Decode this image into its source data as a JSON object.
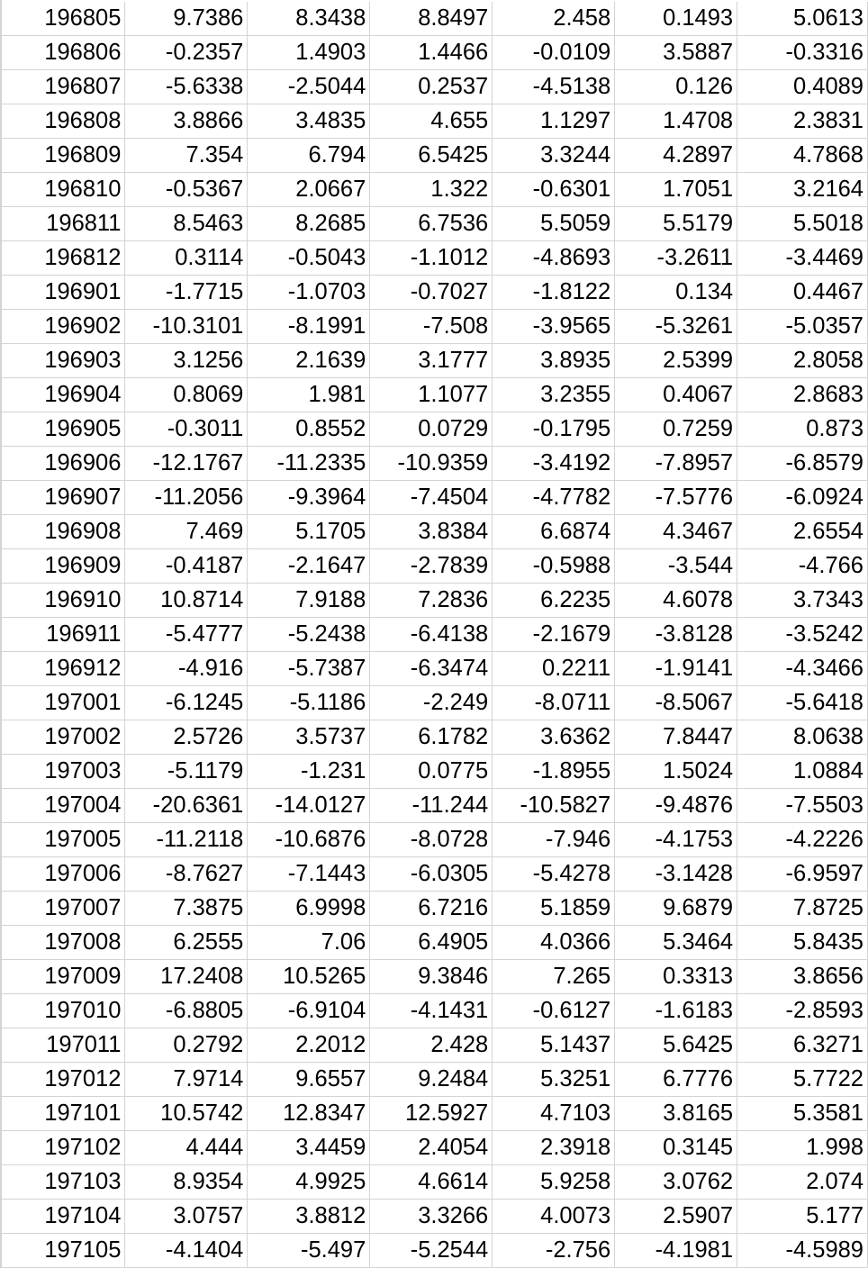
{
  "spreadsheet": {
    "rows": [
      [
        "196805",
        "9.7386",
        "8.3438",
        "8.8497",
        "2.458",
        "0.1493",
        "5.0613"
      ],
      [
        "196806",
        "-0.2357",
        "1.4903",
        "1.4466",
        "-0.0109",
        "3.5887",
        "-0.3316"
      ],
      [
        "196807",
        "-5.6338",
        "-2.5044",
        "0.2537",
        "-4.5138",
        "0.126",
        "0.4089"
      ],
      [
        "196808",
        "3.8866",
        "3.4835",
        "4.655",
        "1.1297",
        "1.4708",
        "2.3831"
      ],
      [
        "196809",
        "7.354",
        "6.794",
        "6.5425",
        "3.3244",
        "4.2897",
        "4.7868"
      ],
      [
        "196810",
        "-0.5367",
        "2.0667",
        "1.322",
        "-0.6301",
        "1.7051",
        "3.2164"
      ],
      [
        "196811",
        "8.5463",
        "8.2685",
        "6.7536",
        "5.5059",
        "5.5179",
        "5.5018"
      ],
      [
        "196812",
        "0.3114",
        "-0.5043",
        "-1.1012",
        "-4.8693",
        "-3.2611",
        "-3.4469"
      ],
      [
        "196901",
        "-1.7715",
        "-1.0703",
        "-0.7027",
        "-1.8122",
        "0.134",
        "0.4467"
      ],
      [
        "196902",
        "-10.3101",
        "-8.1991",
        "-7.508",
        "-3.9565",
        "-5.3261",
        "-5.0357"
      ],
      [
        "196903",
        "3.1256",
        "2.1639",
        "3.1777",
        "3.8935",
        "2.5399",
        "2.8058"
      ],
      [
        "196904",
        "0.8069",
        "1.981",
        "1.1077",
        "3.2355",
        "0.4067",
        "2.8683"
      ],
      [
        "196905",
        "-0.3011",
        "0.8552",
        "0.0729",
        "-0.1795",
        "0.7259",
        "0.873"
      ],
      [
        "196906",
        "-12.1767",
        "-11.2335",
        "-10.9359",
        "-3.4192",
        "-7.8957",
        "-6.8579"
      ],
      [
        "196907",
        "-11.2056",
        "-9.3964",
        "-7.4504",
        "-4.7782",
        "-7.5776",
        "-6.0924"
      ],
      [
        "196908",
        "7.469",
        "5.1705",
        "3.8384",
        "6.6874",
        "4.3467",
        "2.6554"
      ],
      [
        "196909",
        "-0.4187",
        "-2.1647",
        "-2.7839",
        "-0.5988",
        "-3.544",
        "-4.766"
      ],
      [
        "196910",
        "10.8714",
        "7.9188",
        "7.2836",
        "6.2235",
        "4.6078",
        "3.7343"
      ],
      [
        "196911",
        "-5.4777",
        "-5.2438",
        "-6.4138",
        "-2.1679",
        "-3.8128",
        "-3.5242"
      ],
      [
        "196912",
        "-4.916",
        "-5.7387",
        "-6.3474",
        "0.2211",
        "-1.9141",
        "-4.3466"
      ],
      [
        "197001",
        "-6.1245",
        "-5.1186",
        "-2.249",
        "-8.0711",
        "-8.5067",
        "-5.6418"
      ],
      [
        "197002",
        "2.5726",
        "3.5737",
        "6.1782",
        "3.6362",
        "7.8447",
        "8.0638"
      ],
      [
        "197003",
        "-5.1179",
        "-1.231",
        "0.0775",
        "-1.8955",
        "1.5024",
        "1.0884"
      ],
      [
        "197004",
        "-20.6361",
        "-14.0127",
        "-11.244",
        "-10.5827",
        "-9.4876",
        "-7.5503"
      ],
      [
        "197005",
        "-11.2118",
        "-10.6876",
        "-8.0728",
        "-7.946",
        "-4.1753",
        "-4.2226"
      ],
      [
        "197006",
        "-8.7627",
        "-7.1443",
        "-6.0305",
        "-5.4278",
        "-3.1428",
        "-6.9597"
      ],
      [
        "197007",
        "7.3875",
        "6.9998",
        "6.7216",
        "5.1859",
        "9.6879",
        "7.8725"
      ],
      [
        "197008",
        "6.2555",
        "7.06",
        "6.4905",
        "4.0366",
        "5.3464",
        "5.8435"
      ],
      [
        "197009",
        "17.2408",
        "10.5265",
        "9.3846",
        "7.265",
        "0.3313",
        "3.8656"
      ],
      [
        "197010",
        "-6.8805",
        "-6.9104",
        "-4.1431",
        "-0.6127",
        "-1.6183",
        "-2.8593"
      ],
      [
        "197011",
        "0.2792",
        "2.2012",
        "2.428",
        "5.1437",
        "5.6425",
        "6.3271"
      ],
      [
        "197012",
        "7.9714",
        "9.6557",
        "9.2484",
        "5.3251",
        "6.7776",
        "5.7722"
      ],
      [
        "197101",
        "10.5742",
        "12.8347",
        "12.5927",
        "4.7103",
        "3.8165",
        "5.3581"
      ],
      [
        "197102",
        "4.444",
        "3.4459",
        "2.4054",
        "2.3918",
        "0.3145",
        "1.998"
      ],
      [
        "197103",
        "8.9354",
        "4.9925",
        "4.6614",
        "5.9258",
        "3.0762",
        "2.074"
      ],
      [
        "197104",
        "3.0757",
        "3.8812",
        "3.3266",
        "4.0073",
        "2.5907",
        "5.177"
      ],
      [
        "197105",
        "-4.1404",
        "-5.497",
        "-5.2544",
        "-2.756",
        "-4.1981",
        "-4.5989"
      ]
    ],
    "gridline_color": "#d4d4d4",
    "text_color": "#000000",
    "background_color": "#ffffff"
  }
}
